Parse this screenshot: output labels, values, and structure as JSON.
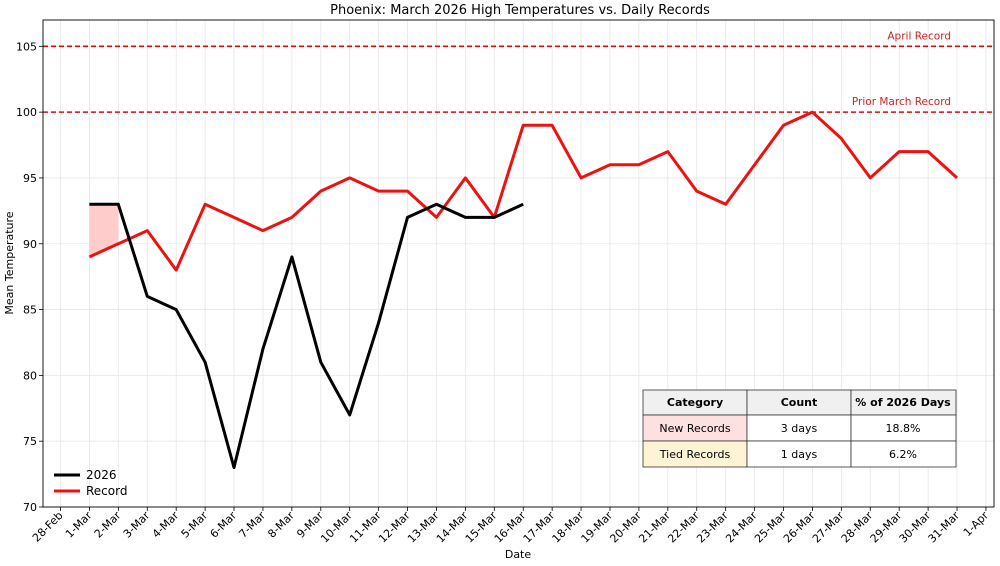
{
  "chart_data": {
    "type": "line",
    "title": "Phoenix: March 2026 High Temperatures vs. Daily Records",
    "xlabel": "Date",
    "ylabel": "Mean Temperature",
    "ylim": [
      70,
      107
    ],
    "yticks": [
      70,
      75,
      80,
      85,
      90,
      95,
      100,
      105
    ],
    "grid": true,
    "legend_position": "lower-left",
    "x_tick_labels": [
      "28-Feb",
      "1-Mar",
      "2-Mar",
      "3-Mar",
      "4-Mar",
      "5-Mar",
      "6-Mar",
      "7-Mar",
      "8-Mar",
      "9-Mar",
      "10-Mar",
      "11-Mar",
      "12-Mar",
      "13-Mar",
      "14-Mar",
      "15-Mar",
      "16-Mar",
      "17-Mar",
      "18-Mar",
      "19-Mar",
      "20-Mar",
      "21-Mar",
      "22-Mar",
      "23-Mar",
      "24-Mar",
      "25-Mar",
      "26-Mar",
      "27-Mar",
      "28-Mar",
      "29-Mar",
      "30-Mar",
      "31-Mar",
      "1-Apr"
    ],
    "series": [
      {
        "name": "2026",
        "color": "#000000",
        "start_index": 1,
        "values": [
          93,
          93,
          86,
          85,
          81,
          73,
          82,
          89,
          81,
          77,
          84,
          92,
          93,
          92,
          92,
          93
        ]
      },
      {
        "name": "Record",
        "color": "#ee1111",
        "start_index": 1,
        "values": [
          89,
          90,
          91,
          88,
          93,
          92,
          91,
          92,
          94,
          95,
          94,
          94,
          92,
          95,
          92,
          99,
          99,
          95,
          96,
          96,
          97,
          94,
          93,
          96,
          99,
          100,
          98,
          95,
          97,
          97,
          95
        ]
      }
    ],
    "reference_lines": [
      {
        "label": "April Record",
        "value": 105,
        "color": "#cc1111"
      },
      {
        "label": "Prior March Record",
        "value": 100,
        "color": "#cc1111"
      }
    ],
    "shaded_region": {
      "from_index": 1,
      "to_index": 2,
      "color": "#ffcccc",
      "between": [
        "2026",
        "Record"
      ]
    },
    "table": {
      "headers": [
        "Category",
        "Count",
        "% of 2026 Days"
      ],
      "rows": [
        {
          "category": "New Records",
          "count": "3 days",
          "pct": "18.8%",
          "color": "#fde0e0"
        },
        {
          "category": "Tied Records",
          "count": "1 days",
          "pct": "6.2%",
          "color": "#fff3d6"
        }
      ]
    }
  }
}
